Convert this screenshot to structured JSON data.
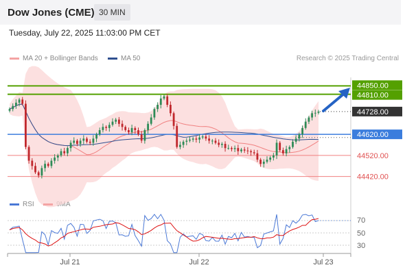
{
  "header": {
    "title": "Dow Jones (CME)",
    "interval": "30 MIN"
  },
  "datetime": "Tuesday, July 22, 2025 11:03:00 PM CET",
  "legend": {
    "ma20": "MA 20 + Bollinger Bands",
    "ma50": "MA 50",
    "credit": "Research © 2025 Trading Central",
    "rsi": "RSI",
    "ma9": "9MA"
  },
  "colors": {
    "resistance": "#54a000",
    "support": "#f08080",
    "pivot": "#3b7ddd",
    "up": "#2e8b57",
    "down": "#c0282d",
    "arrow": "#2563c4"
  },
  "chart_data": {
    "type": "candlestick",
    "levels": [
      {
        "label": "44850.00",
        "value": 44850,
        "kind": "resistance"
      },
      {
        "label": "44810.00",
        "value": 44810,
        "kind": "resistance"
      },
      {
        "label": "44728.00",
        "value": 44728,
        "kind": "last"
      },
      {
        "label": "44620.00",
        "value": 44620,
        "kind": "pivot"
      },
      {
        "label": "44520.00",
        "value": 44520,
        "kind": "support"
      },
      {
        "label": "44420.00",
        "value": 44420,
        "kind": "support"
      }
    ],
    "price_ylim": [
      44380,
      44890
    ],
    "rsi_levels": [
      "70",
      "50",
      "30"
    ],
    "x_labels": [
      "Jul 21",
      "Jul 22",
      "Jul 23"
    ],
    "close": [
      44740,
      44755,
      44770,
      44785,
      44765,
      44560,
      44495,
      44470,
      44440,
      44425,
      44460,
      44480,
      44470,
      44495,
      44510,
      44520,
      44540,
      44530,
      44555,
      44580,
      44590,
      44575,
      44590,
      44600,
      44585,
      44580,
      44600,
      44620,
      44640,
      44655,
      44650,
      44665,
      44680,
      44690,
      44670,
      44655,
      44640,
      44630,
      44650,
      44640,
      44620,
      44590,
      44640,
      44670,
      44700,
      44740,
      44760,
      44790,
      44800,
      44760,
      44720,
      44660,
      44560,
      44570,
      44585,
      44590,
      44595,
      44600,
      44595,
      44605,
      44610,
      44600,
      44590,
      44590,
      44580,
      44570,
      44575,
      44555,
      44555,
      44550,
      44555,
      44540,
      44548,
      44543,
      44540,
      44535,
      44530,
      44500,
      44480,
      44490,
      44500,
      44510,
      44520,
      44580,
      44545,
      44530,
      44550,
      44560,
      44585,
      44600,
      44620,
      44650,
      44680,
      44700,
      44720,
      44722,
      44728
    ]
  }
}
